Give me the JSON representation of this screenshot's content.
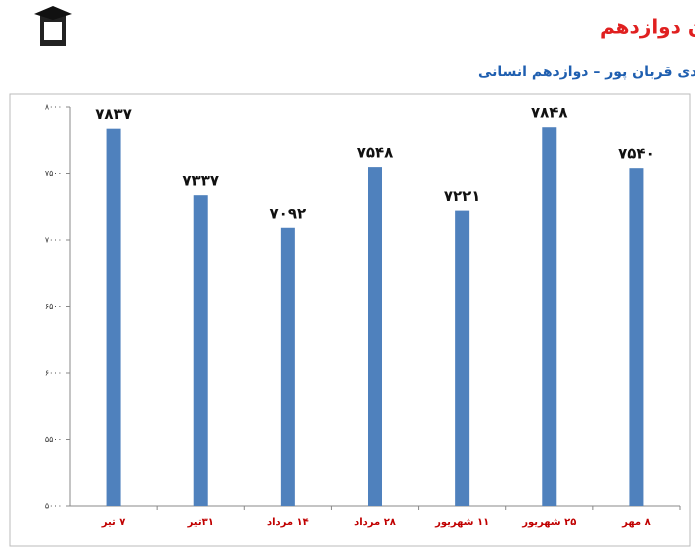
{
  "chart_data": {
    "type": "bar",
    "title": "شروع از تابستان : نمودار پیشرفت در تابستان دوازدهم",
    "subtitle": "مهدی قربان پور – دوازدهم انسانی",
    "categories": [
      "۷ تیر",
      "۳۱تیر",
      "۱۴ مرداد",
      "۲۸ مرداد",
      "۱۱ شهریور",
      "۲۵ شهریور",
      "۸ مهر"
    ],
    "values": [
      7837,
      7337,
      7092,
      7548,
      7221,
      7848,
      7540
    ],
    "value_labels": [
      "۷۸۳۷",
      "۷۳۳۷",
      "۷۰۹۲",
      "۷۵۴۸",
      "۷۲۲۱",
      "۷۸۴۸",
      "۷۵۴۰"
    ],
    "color": "#4f81bd",
    "ylim": [
      5000,
      8000
    ],
    "yticks": [
      {
        "value": 5000,
        "label": "۵۰۰۰"
      },
      {
        "value": 5500,
        "label": "۵۵۰۰"
      },
      {
        "value": 6000,
        "label": "۶۰۰۰"
      },
      {
        "value": 6500,
        "label": "۶۵۰۰"
      },
      {
        "value": 7000,
        "label": "۷۰۰۰"
      },
      {
        "value": 7500,
        "label": "۷۵۰۰"
      },
      {
        "value": 8000,
        "label": "۸۰۰۰"
      }
    ],
    "grid": false
  }
}
